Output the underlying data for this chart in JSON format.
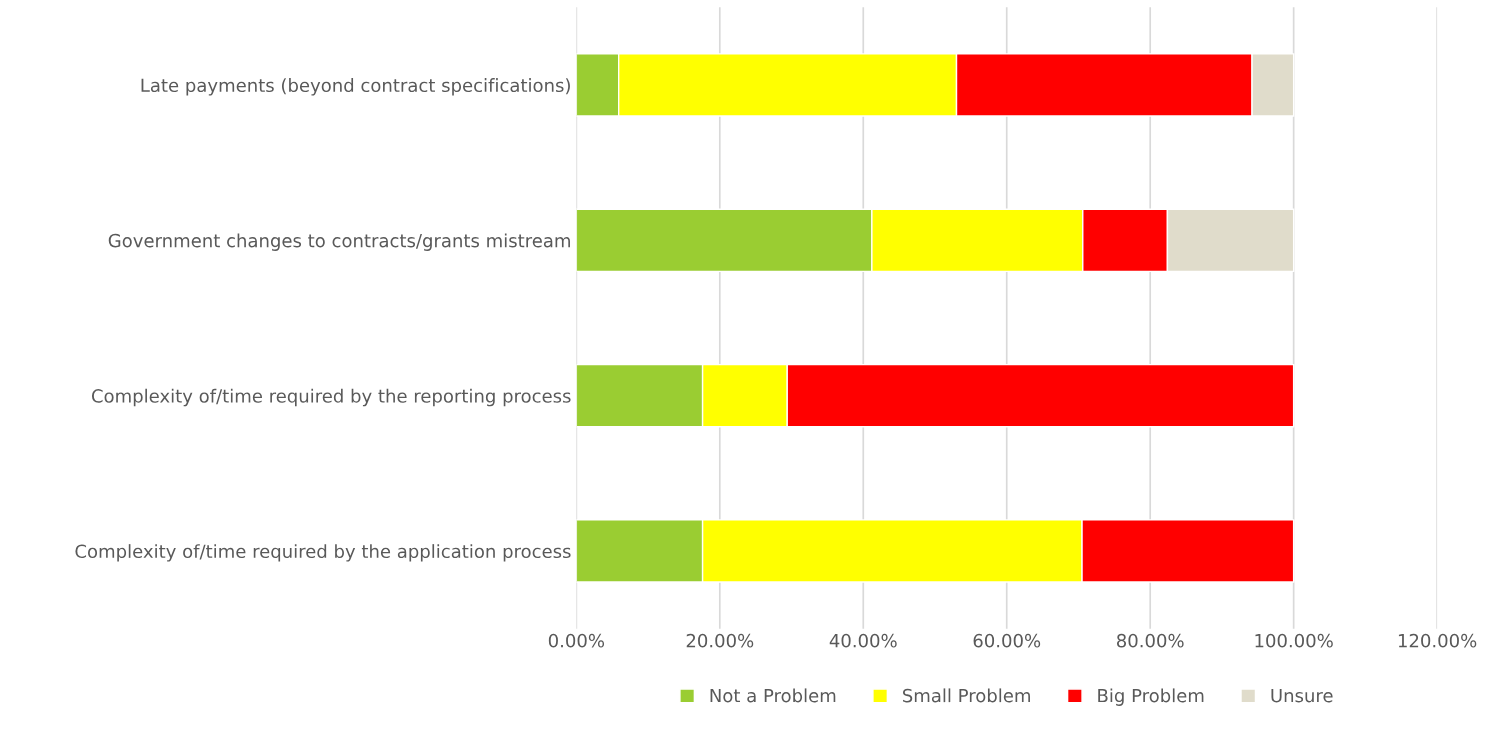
{
  "chart_data": {
    "type": "bar",
    "orientation": "horizontal",
    "stacked": true,
    "categories": [
      "Late payments (beyond contract specifications)",
      "Government changes to contracts/grants mistream",
      "Complexity of/time required by the reporting process",
      "Complexity of/time required by the application process"
    ],
    "series": [
      {
        "name": "Not a Problem",
        "color": "#9acd32",
        "values": [
          5.9,
          41.2,
          17.6,
          17.6
        ]
      },
      {
        "name": "Small Problem",
        "color": "#ffff00",
        "values": [
          47.1,
          29.4,
          11.8,
          52.9
        ]
      },
      {
        "name": "Big Problem",
        "color": "#ff0000",
        "values": [
          41.2,
          11.8,
          70.6,
          29.5
        ]
      },
      {
        "name": "Unsure",
        "color": "#e0dccb",
        "values": [
          5.8,
          17.6,
          null,
          null
        ]
      }
    ],
    "xlim": [
      0,
      120
    ],
    "xticks": [
      {
        "value": 0,
        "label": "0.00%"
      },
      {
        "value": 20,
        "label": "20.00%"
      },
      {
        "value": 40,
        "label": "40.00%"
      },
      {
        "value": 60,
        "label": "60.00%"
      },
      {
        "value": 80,
        "label": "80.00%"
      },
      {
        "value": 100,
        "label": "100.00%"
      },
      {
        "value": 120,
        "label": "120.00%"
      }
    ],
    "grid": "x",
    "legend": "bottom"
  }
}
